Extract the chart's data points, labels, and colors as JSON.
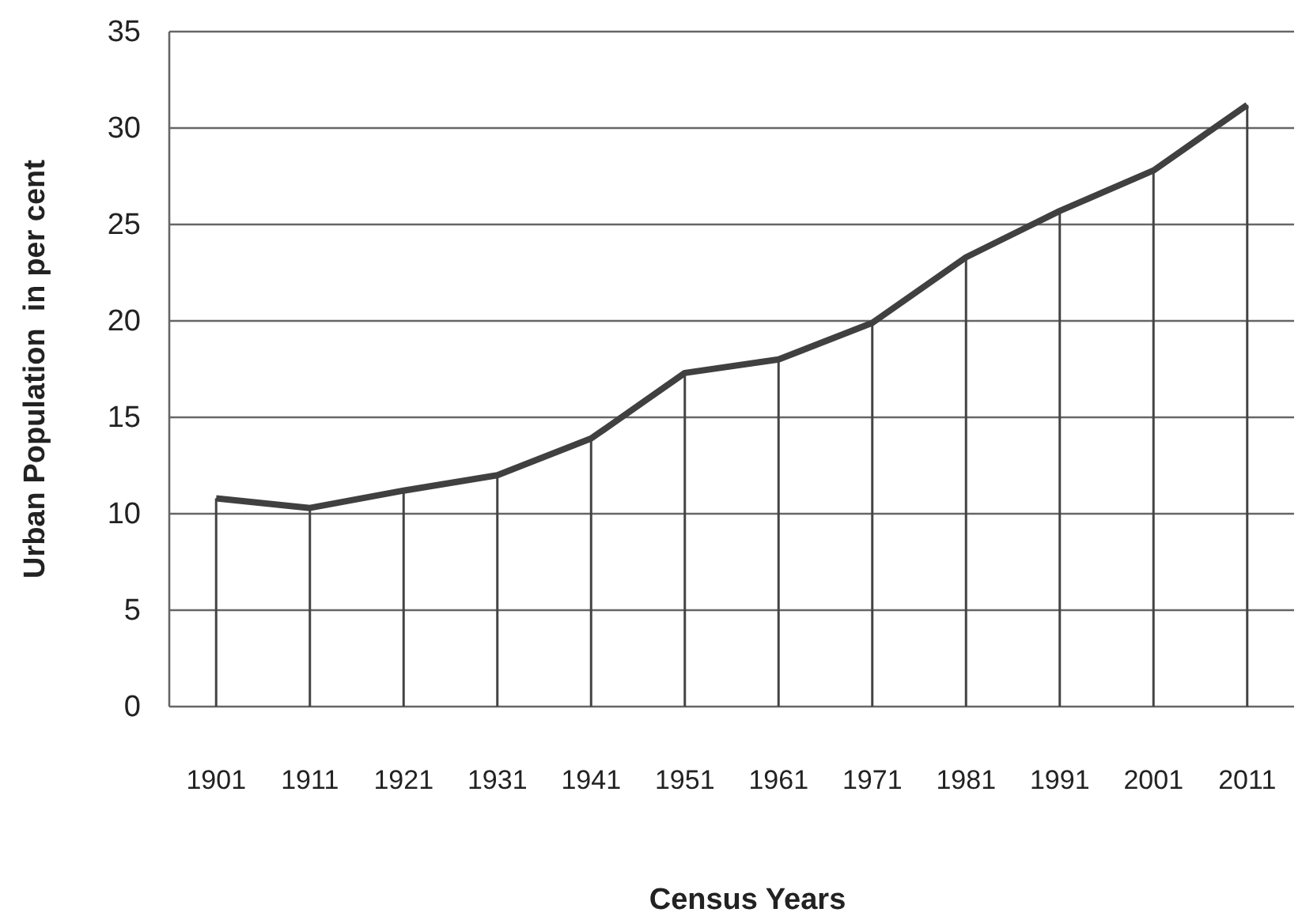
{
  "chart_data": {
    "type": "line",
    "xlabel": "Census Years",
    "ylabel": "Urban Population  in per cent",
    "categories": [
      "1901",
      "1911",
      "1921",
      "1931",
      "1941",
      "1951",
      "1961",
      "1971",
      "1981",
      "1991",
      "2001",
      "2011"
    ],
    "series": [
      {
        "type": "bar",
        "color": "#444444",
        "values": [
          10.8,
          10.3,
          11.2,
          12.0,
          13.9,
          17.3,
          18.0,
          19.9,
          23.3,
          25.7,
          27.8,
          31.2
        ]
      },
      {
        "color": "#404040",
        "values": [
          10.8,
          10.3,
          11.2,
          12.0,
          13.9,
          17.3,
          18.0,
          19.9,
          23.3,
          25.7,
          27.8,
          31.2
        ]
      }
    ],
    "ylim": [
      0,
      35
    ],
    "yticks": [
      0,
      5,
      10,
      15,
      20,
      25,
      30,
      35
    ],
    "grid": "y",
    "marker": "none",
    "line_style": "solid"
  }
}
